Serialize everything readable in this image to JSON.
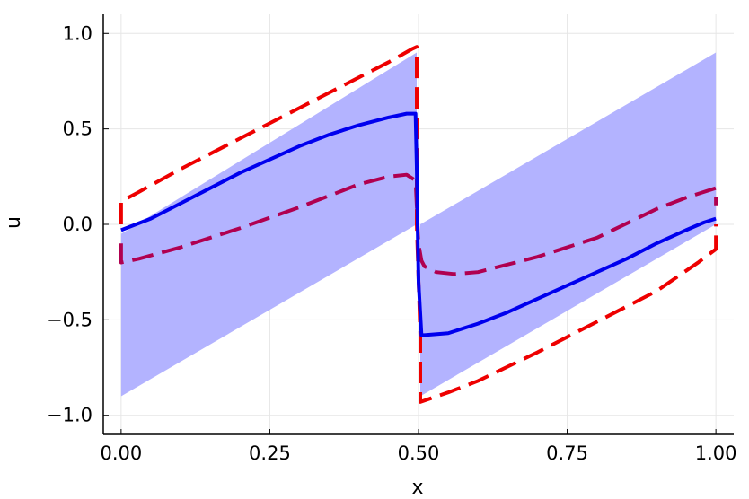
{
  "chart_data": {
    "type": "line",
    "title": "",
    "xlabel": "x",
    "ylabel": "u",
    "xlim": [
      -0.03,
      1.03
    ],
    "ylim": [
      -1.1,
      1.1
    ],
    "xticks": [
      0.0,
      0.25,
      0.5,
      0.75,
      1.0
    ],
    "xtick_labels": [
      "0.00",
      "0.25",
      "0.50",
      "0.75",
      "1.00"
    ],
    "yticks": [
      -1.0,
      -0.5,
      0.0,
      0.5,
      1.0
    ],
    "ytick_labels": [
      "−1.0",
      "−0.5",
      "0.0",
      "0.5",
      "1.0"
    ],
    "grid": true,
    "legend": "none",
    "band": {
      "color": "#b3b3ff",
      "x": [
        0.0,
        0.495,
        0.495,
        0.5,
        0.505,
        0.51,
        0.51,
        1.0
      ],
      "upper": [
        -0.05,
        0.9,
        0.9,
        -0.9,
        -0.9,
        0.0,
        0.0,
        0.9
      ],
      "lower": [
        -0.9,
        -0.9,
        -0.9,
        -0.9,
        -0.9,
        -0.9,
        -0.9,
        0.0
      ],
      "segments": [
        {
          "x": [
            0.0,
            0.497
          ],
          "upper": [
            -0.05,
            0.9
          ],
          "lower": [
            -0.9,
            0.0
          ]
        },
        {
          "x": [
            0.503,
            1.0
          ],
          "upper": [
            0.0,
            0.9
          ],
          "lower": [
            -0.9,
            0.0
          ]
        }
      ]
    },
    "series": [
      {
        "color": "#0000ee",
        "style": "solid",
        "x": [
          0.0,
          0.05,
          0.1,
          0.15,
          0.2,
          0.25,
          0.3,
          0.35,
          0.4,
          0.45,
          0.48,
          0.495,
          0.497,
          0.5,
          0.505,
          0.51,
          0.55,
          0.6,
          0.65,
          0.7,
          0.75,
          0.8,
          0.85,
          0.9,
          0.95,
          0.98,
          1.0
        ],
        "y": [
          -0.03,
          0.03,
          0.11,
          0.19,
          0.27,
          0.34,
          0.41,
          0.47,
          0.52,
          0.56,
          0.58,
          0.58,
          0.3,
          -0.3,
          -0.58,
          -0.58,
          -0.57,
          -0.52,
          -0.46,
          -0.39,
          -0.32,
          -0.25,
          -0.18,
          -0.1,
          -0.03,
          0.01,
          0.03
        ]
      },
      {
        "color": "#ee0000",
        "style": "dashed",
        "x": [
          0.0,
          0.0,
          0.03,
          0.1,
          0.2,
          0.3,
          0.4,
          0.45,
          0.49,
          0.497,
          0.497,
          0.503,
          0.503,
          0.55,
          0.6,
          0.7,
          0.8,
          0.9,
          0.97,
          1.0,
          1.0
        ],
        "y": [
          0.0,
          0.12,
          0.17,
          0.29,
          0.45,
          0.61,
          0.77,
          0.85,
          0.92,
          0.93,
          0.0,
          -0.58,
          -0.93,
          -0.88,
          -0.82,
          -0.67,
          -0.51,
          -0.35,
          -0.2,
          -0.13,
          0.0
        ]
      },
      {
        "color": "#b00050",
        "style": "dashed",
        "x": [
          0.0,
          0.0,
          0.03,
          0.1,
          0.2,
          0.3,
          0.4,
          0.45,
          0.48,
          0.495,
          0.5,
          0.505,
          0.51,
          0.53,
          0.56,
          0.6,
          0.7,
          0.8,
          0.9,
          0.95,
          1.0,
          1.0
        ],
        "y": [
          -0.1,
          -0.2,
          -0.18,
          -0.12,
          -0.02,
          0.09,
          0.21,
          0.25,
          0.26,
          0.23,
          -0.1,
          -0.19,
          -0.22,
          -0.25,
          -0.26,
          -0.25,
          -0.17,
          -0.07,
          0.08,
          0.14,
          0.19,
          0.1
        ]
      }
    ]
  }
}
